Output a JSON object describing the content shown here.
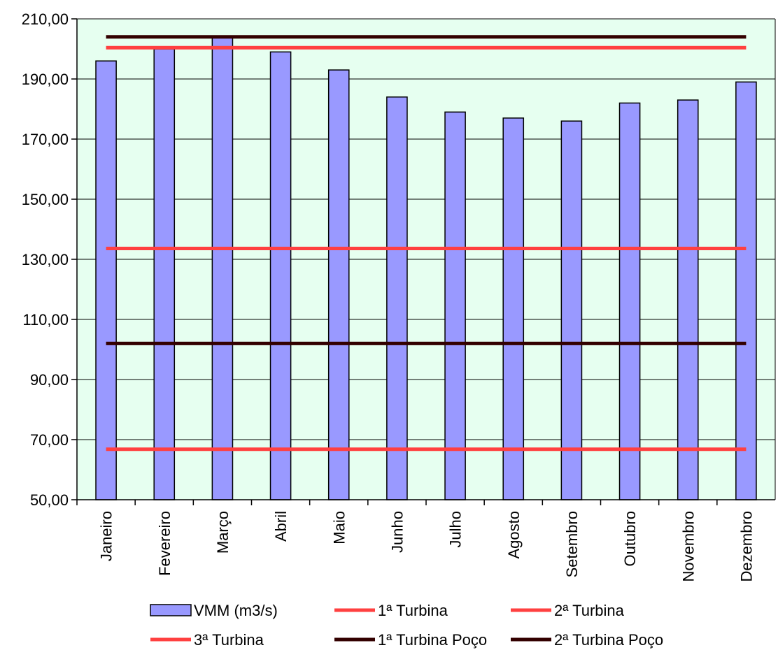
{
  "chart_data": {
    "type": "bar",
    "categories": [
      "Janeiro",
      "Fevereiro",
      "Março",
      "Abril",
      "Maio",
      "Junho",
      "Julho",
      "Agosto",
      "Setembro",
      "Outubro",
      "Novembro",
      "Dezembro"
    ],
    "bar_series": {
      "name": "VMM (m3/s)",
      "values": [
        196,
        200,
        204,
        199,
        193,
        184,
        179,
        177,
        176,
        182,
        183,
        189
      ],
      "color": "#9999ff"
    },
    "line_series": [
      {
        "name": "1ª Turbina",
        "value": 66.8,
        "color": "#ff4040"
      },
      {
        "name": "2ª Turbina",
        "value": 133.6,
        "color": "#ff4040"
      },
      {
        "name": "3ª Turbina",
        "value": 200.4,
        "color": "#ff4040"
      },
      {
        "name": "1ª Turbina Poço",
        "value": 102,
        "color": "#330000"
      },
      {
        "name": "2ª Turbina Poço",
        "value": 204,
        "color": "#330000"
      }
    ],
    "ylim": [
      50,
      210
    ],
    "yticks": [
      "50,00",
      "70,00",
      "90,00",
      "110,00",
      "130,00",
      "150,00",
      "170,00",
      "190,00",
      "210,00"
    ],
    "grid": true,
    "plot_background": "#e6fff0",
    "legend_position": "bottom"
  }
}
